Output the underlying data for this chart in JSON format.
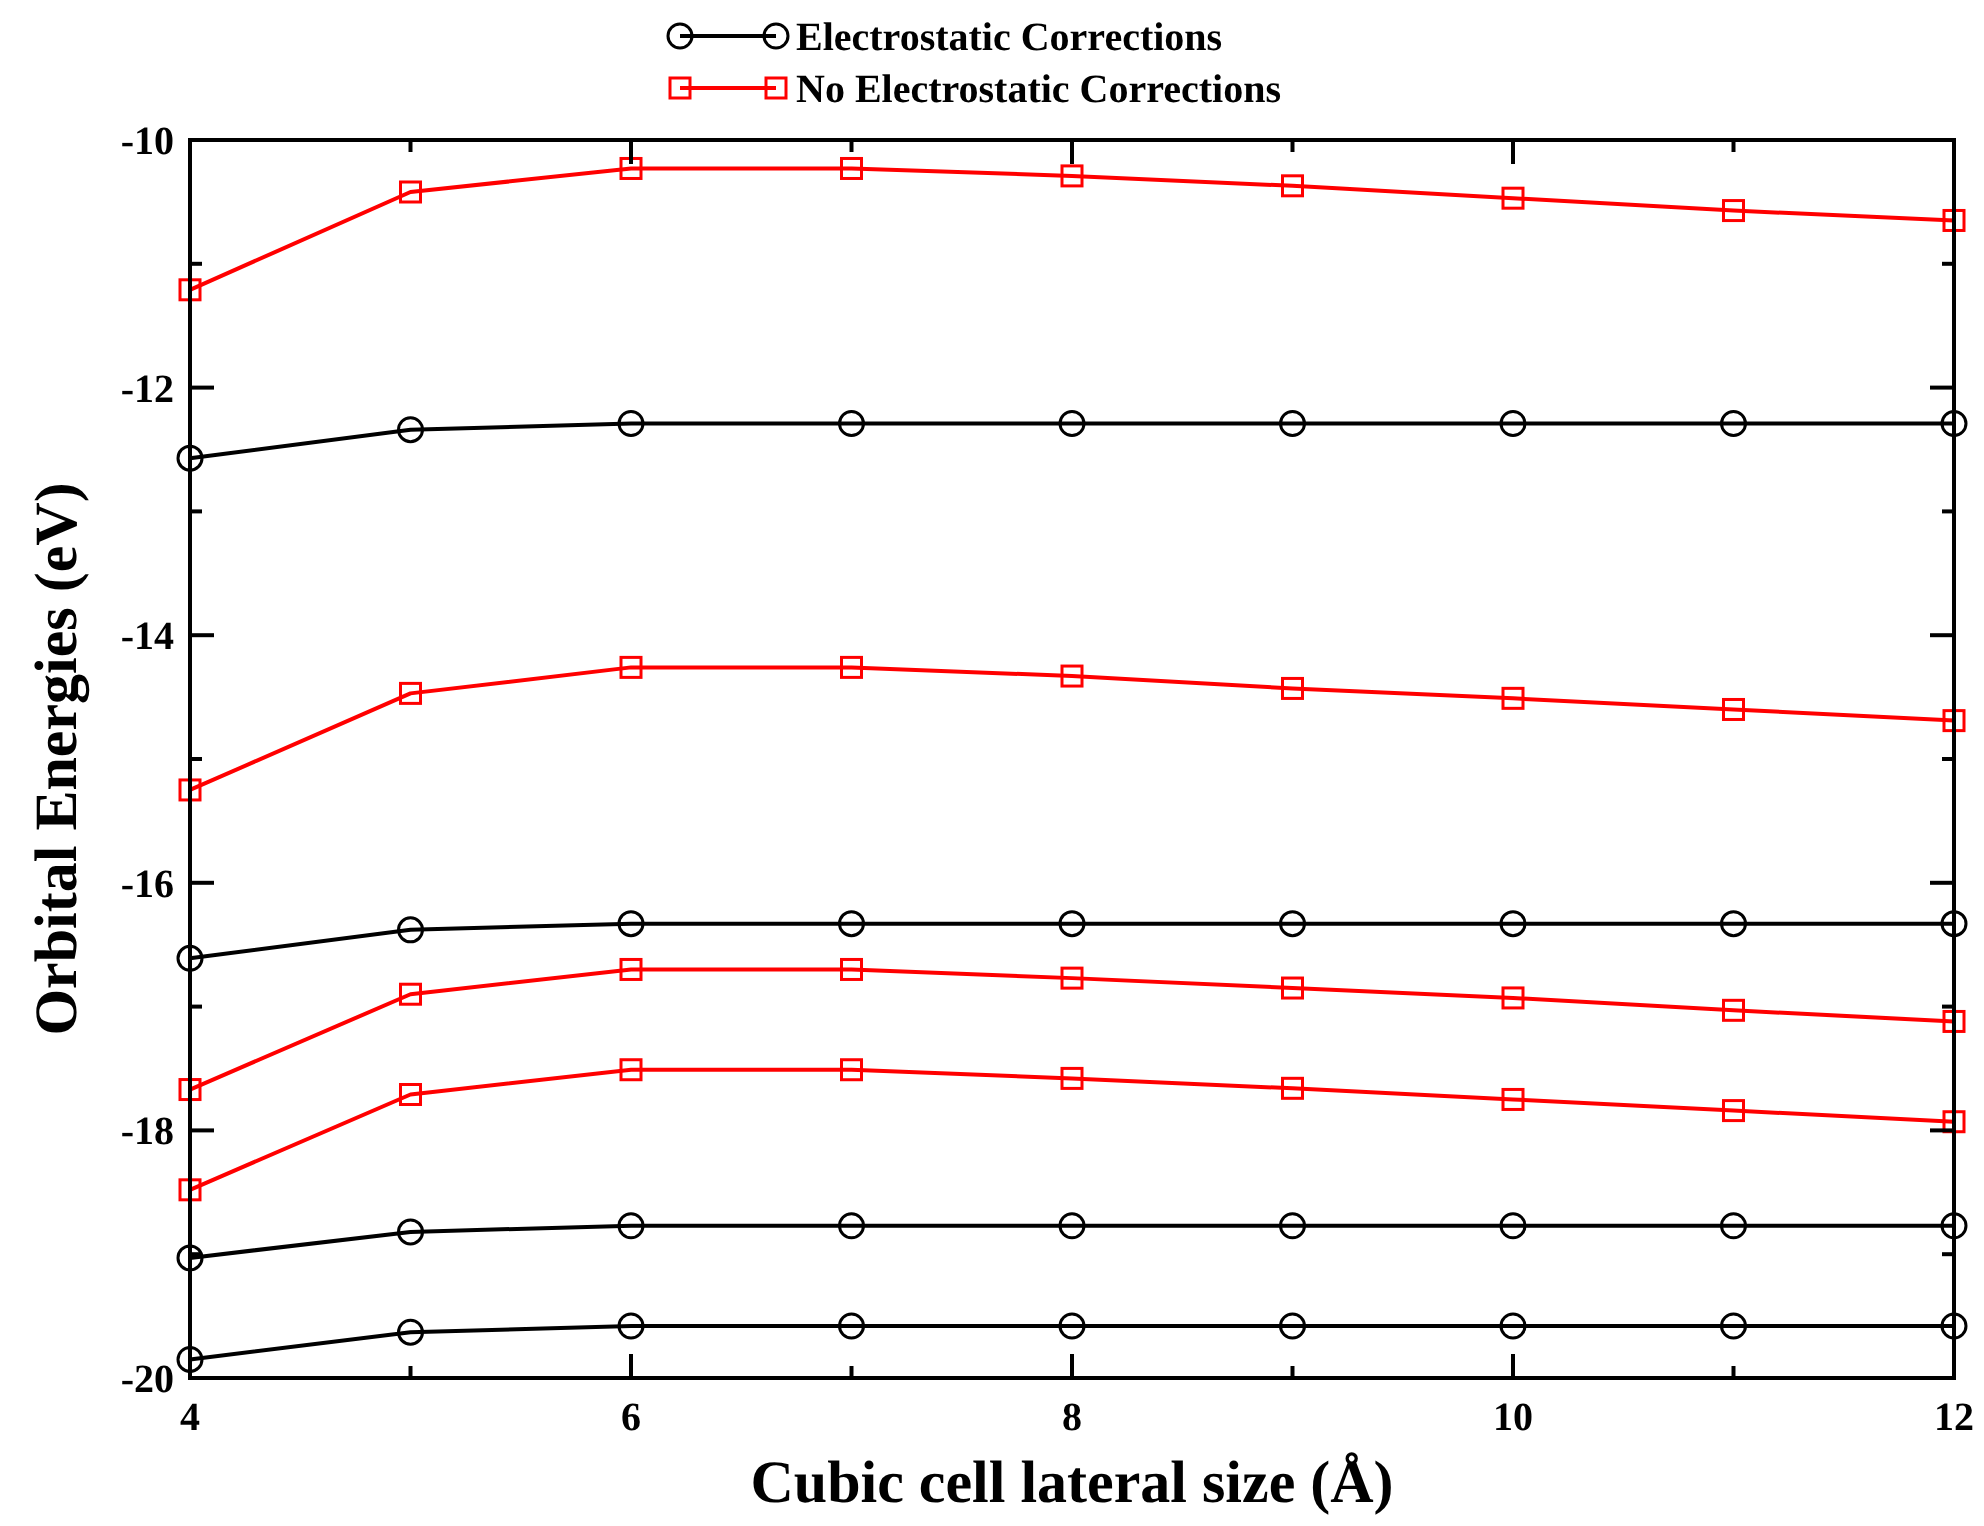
{
  "chart_data": {
    "type": "line",
    "xlabel": "Cubic cell lateral size (Å)",
    "ylabel": "Orbital Energies (eV)",
    "x": [
      4,
      5,
      6,
      7,
      8,
      9,
      10,
      11,
      12
    ],
    "xlim": [
      4,
      12
    ],
    "xticks": [
      4,
      {
        "value": 5,
        "label": null
      },
      6,
      {
        "value": 7,
        "label": null
      },
      8,
      {
        "value": 9,
        "label": null
      },
      10,
      {
        "value": 11,
        "label": null
      },
      12
    ],
    "ylim": [
      -20,
      -10
    ],
    "yticks": [
      -20,
      {
        "value": -19,
        "label": null
      },
      -18,
      {
        "value": -17,
        "label": null
      },
      -16,
      {
        "value": -15,
        "label": null
      },
      -14,
      {
        "value": -13,
        "label": null
      },
      -12,
      {
        "value": -11,
        "label": null
      },
      -10
    ],
    "grid": false,
    "legend": "top",
    "series": [
      {
        "name": "Electrostatic Corrections",
        "color": "#000000",
        "marker": "circle",
        "values": [
          -12.57,
          -12.34,
          -12.29,
          -12.29,
          -12.29,
          -12.29,
          -12.29,
          -12.29,
          -12.29
        ]
      },
      {
        "name": "No Electrostatic Corrections",
        "color": "#ff0000",
        "marker": "square",
        "values": [
          -11.21,
          -10.42,
          -10.23,
          -10.23,
          -10.29,
          -10.37,
          -10.47,
          -10.57,
          -10.65
        ]
      },
      {
        "color": "#ff0000",
        "marker": "square",
        "values": [
          -15.25,
          -14.47,
          -14.26,
          -14.26,
          -14.33,
          -14.43,
          -14.51,
          -14.6,
          -14.69
        ]
      },
      {
        "color": "#000000",
        "marker": "circle",
        "values": [
          -16.61,
          -16.38,
          -16.33,
          -16.33,
          -16.33,
          -16.33,
          -16.33,
          -16.33,
          -16.33
        ]
      },
      {
        "color": "#ff0000",
        "marker": "square",
        "values": [
          -17.67,
          -16.9,
          -16.7,
          -16.7,
          -16.77,
          -16.85,
          -16.93,
          -17.03,
          -17.12
        ]
      },
      {
        "color": "#ff0000",
        "marker": "square",
        "values": [
          -18.48,
          -17.71,
          -17.51,
          -17.51,
          -17.58,
          -17.66,
          -17.75,
          -17.84,
          -17.93
        ]
      },
      {
        "color": "#000000",
        "marker": "circle",
        "values": [
          -19.03,
          -18.82,
          -18.77,
          -18.77,
          -18.77,
          -18.77,
          -18.77,
          -18.77,
          -18.77
        ]
      },
      {
        "color": "#000000",
        "marker": "circle",
        "values": [
          -19.85,
          -19.63,
          -19.58,
          -19.58,
          -19.58,
          -19.58,
          -19.58,
          -19.58,
          -19.58
        ]
      }
    ]
  }
}
